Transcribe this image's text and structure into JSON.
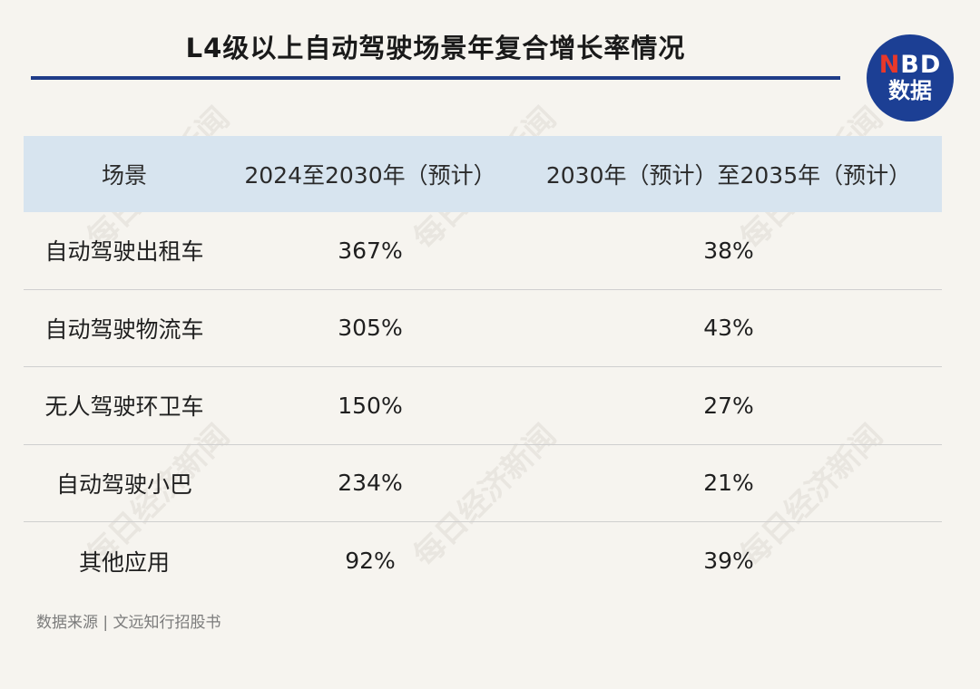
{
  "header": {
    "title": "L4级以上自动驾驶场景年复合增长率情况"
  },
  "logo": {
    "line1_accent": "N",
    "line1_rest": "BD",
    "line2": "数据"
  },
  "table": {
    "columns": [
      "场景",
      "2024至2030年（预计）",
      "2030年（预计）至2035年（预计）"
    ],
    "rows": [
      {
        "scene": "自动驾驶出租车",
        "cagr_2024_2030": "367%",
        "cagr_2030_2035": "38%"
      },
      {
        "scene": "自动驾驶物流车",
        "cagr_2024_2030": "305%",
        "cagr_2030_2035": "43%"
      },
      {
        "scene": "无人驾驶环卫车",
        "cagr_2024_2030": "150%",
        "cagr_2030_2035": "27%"
      },
      {
        "scene": "自动驾驶小巴",
        "cagr_2024_2030": "234%",
        "cagr_2030_2035": "21%"
      },
      {
        "scene": "其他应用",
        "cagr_2024_2030": "92%",
        "cagr_2030_2035": "39%"
      }
    ]
  },
  "source": {
    "text": "数据来源 | 文远知行招股书"
  },
  "watermark": {
    "text": "每日经济新闻"
  },
  "colors": {
    "accent": "#1f3c88",
    "logo_bg": "#1c3f94",
    "logo_accent": "#e8382a",
    "header_row_bg": "#d7e4ef",
    "page_bg": "#f6f4ef"
  }
}
